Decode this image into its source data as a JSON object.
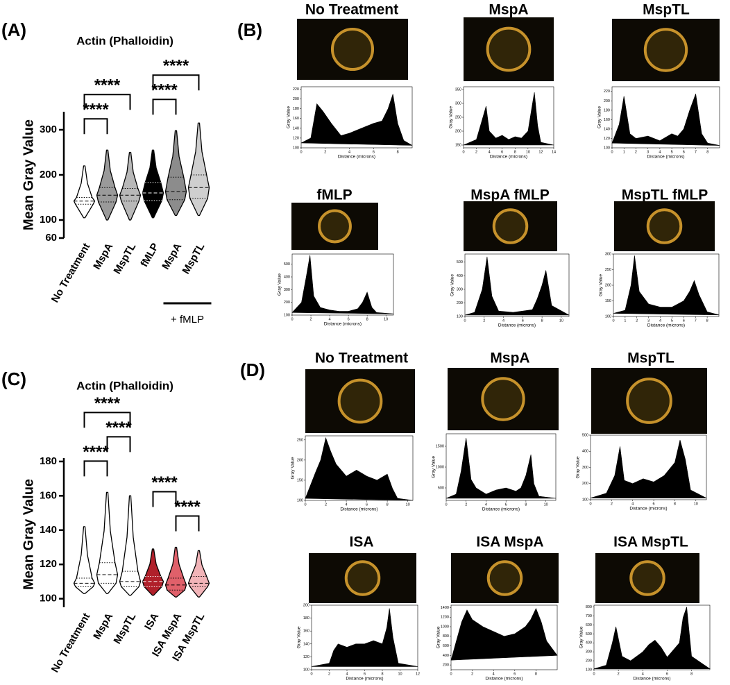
{
  "chart_data": [
    {
      "type": "violin",
      "panel_label": "(A)",
      "title": "Actin (Phalloidin)",
      "y_label": "Mean Gray Value",
      "categories": [
        "No Treatment",
        "MspA",
        "MspTL",
        "fMLP",
        "MspA",
        "MspTL"
      ],
      "colors": [
        "#ffffff",
        "#9a9a9a",
        "#b8b8b8",
        "#000000",
        "#8c8c8c",
        "#cfcfcf"
      ],
      "min": [
        105,
        100,
        100,
        105,
        110,
        110
      ],
      "q1": [
        135,
        140,
        142,
        143,
        145,
        148
      ],
      "median": [
        142,
        155,
        155,
        160,
        163,
        172
      ],
      "q3": [
        150,
        172,
        170,
        183,
        195,
        200
      ],
      "max": [
        220,
        255,
        250,
        255,
        298,
        315
      ],
      "ylim": [
        60,
        340
      ],
      "yticks": [
        60,
        100,
        200,
        300
      ],
      "comparisons": [
        {
          "from": 0,
          "to": 1,
          "label": "****"
        },
        {
          "from": 0,
          "to": 2,
          "label": "****"
        },
        {
          "from": 3,
          "to": 4,
          "label": "****"
        },
        {
          "from": 3,
          "to": 5,
          "label": "****"
        }
      ],
      "group_labels": [
        {
          "label": "+ fMLP",
          "from": 4,
          "to": 5
        }
      ]
    },
    {
      "type": "area",
      "panel_label": "(B)",
      "title": "No Treatment",
      "x_label": "Distance (microns)",
      "y_label": "Gray Value",
      "color": "#000000",
      "x": [
        0,
        0.8,
        1.3,
        1.8,
        2.5,
        3.3,
        4,
        5,
        6,
        6.7,
        7.2,
        7.6,
        8,
        8.5,
        9.2
      ],
      "values": [
        110,
        120,
        190,
        175,
        150,
        125,
        130,
        140,
        150,
        155,
        180,
        210,
        150,
        115,
        105
      ],
      "xlim": [
        0,
        9.2
      ],
      "xticks": [
        0,
        2,
        4,
        6,
        8
      ],
      "ylim": [
        100,
        225
      ],
      "yticks": [
        100,
        120,
        140,
        160,
        180,
        200,
        220
      ]
    },
    {
      "type": "area",
      "title": "MspA",
      "x_label": "Distance (microns)",
      "y_label": "Gray Value",
      "color": "#000000",
      "x": [
        0,
        2,
        3,
        3.5,
        4,
        5,
        6,
        7,
        8,
        9,
        10,
        10.7,
        11,
        11.5,
        12,
        14
      ],
      "values": [
        150,
        170,
        250,
        290,
        200,
        175,
        185,
        170,
        180,
        175,
        200,
        300,
        340,
        220,
        160,
        150
      ],
      "xlim": [
        0,
        14
      ],
      "xticks": [
        0,
        2,
        4,
        6,
        8,
        10,
        12,
        14
      ],
      "ylim": [
        140,
        360
      ],
      "yticks": [
        150,
        200,
        250,
        300,
        350
      ]
    },
    {
      "type": "area",
      "title": "MspTL",
      "x_label": "Distance (microns)",
      "y_label": "Gray Value",
      "color": "#000000",
      "x": [
        0,
        0.6,
        1,
        1.5,
        2,
        3,
        4,
        5,
        5.5,
        6,
        6.5,
        7,
        7.5,
        8,
        9
      ],
      "values": [
        110,
        150,
        210,
        130,
        120,
        125,
        115,
        130,
        125,
        140,
        180,
        215,
        130,
        110,
        105
      ],
      "xlim": [
        0,
        9
      ],
      "xticks": [
        0,
        1,
        2,
        3,
        4,
        5,
        6,
        7,
        8
      ],
      "ylim": [
        100,
        230
      ],
      "yticks": [
        100,
        120,
        140,
        160,
        180,
        200,
        220
      ]
    },
    {
      "type": "area",
      "title": "fMLP",
      "x_label": "Distance (microns)",
      "y_label": "Gray Value",
      "color": "#000000",
      "x": [
        0,
        1,
        1.5,
        1.9,
        2.3,
        3,
        4,
        5,
        6,
        7,
        7.5,
        8,
        8.5,
        9,
        10.8
      ],
      "values": [
        120,
        200,
        400,
        570,
        250,
        160,
        140,
        130,
        130,
        150,
        200,
        280,
        160,
        120,
        110
      ],
      "xlim": [
        0,
        10.8
      ],
      "xticks": [
        0,
        2,
        4,
        6,
        8,
        10
      ],
      "ylim": [
        100,
        580
      ],
      "yticks": [
        100,
        200,
        300,
        400,
        500
      ]
    },
    {
      "type": "area",
      "title": "MspA fMLP",
      "x_label": "Distance (microns)",
      "y_label": "Gray Value",
      "color": "#000000",
      "x": [
        0,
        1,
        1.8,
        2.3,
        2.8,
        3.5,
        5,
        6,
        7,
        7.5,
        8,
        8.4,
        9,
        10.8
      ],
      "values": [
        110,
        130,
        300,
        540,
        250,
        140,
        130,
        140,
        150,
        230,
        330,
        440,
        180,
        110
      ],
      "xlim": [
        0,
        10.8
      ],
      "xticks": [
        0,
        2,
        4,
        6,
        8,
        10
      ],
      "ylim": [
        100,
        560
      ],
      "yticks": [
        100,
        200,
        300,
        400,
        500
      ]
    },
    {
      "type": "area",
      "title": "MspTL fMLP",
      "x_label": "Distance (microns)",
      "y_label": "Gray Value",
      "color": "#000000",
      "x": [
        0,
        1,
        1.5,
        1.8,
        2.2,
        3,
        4,
        5,
        6,
        6.5,
        6.9,
        7.3,
        8,
        9
      ],
      "values": [
        110,
        120,
        200,
        295,
        180,
        140,
        130,
        130,
        150,
        180,
        215,
        170,
        115,
        105
      ],
      "xlim": [
        0,
        9
      ],
      "xticks": [
        0,
        1,
        2,
        3,
        4,
        5,
        6,
        7,
        8
      ],
      "ylim": [
        100,
        300
      ],
      "yticks": [
        100,
        150,
        200,
        250,
        300
      ]
    },
    {
      "type": "violin",
      "panel_label": "(C)",
      "title": "Actin (Phalloidin)",
      "y_label": "Mean Gray Value",
      "categories": [
        "No Treatment",
        "MspA",
        "MspTL",
        "ISA",
        "ISA MspA",
        "ISA MspTL"
      ],
      "colors": [
        "#ffffff",
        "#ffffff",
        "#ffffff",
        "#b0202a",
        "#e0606a",
        "#f2b4b8"
      ],
      "min": [
        103,
        103,
        102,
        102,
        101,
        101
      ],
      "q1": [
        107,
        109,
        107,
        107,
        105,
        107
      ],
      "median": [
        109,
        114,
        110,
        110,
        108,
        109
      ],
      "q3": [
        112,
        121,
        116,
        113,
        112,
        113
      ],
      "max": [
        142,
        162,
        160,
        129,
        130,
        128
      ],
      "ylim": [
        95,
        182
      ],
      "yticks": [
        100,
        120,
        140,
        160,
        180
      ],
      "comparisons": [
        {
          "from": 0,
          "to": 1,
          "label": "****"
        },
        {
          "from": 1,
          "to": 2,
          "label": "****"
        },
        {
          "from": 0,
          "to": 2,
          "label": "****"
        },
        {
          "from": 4,
          "to": 5,
          "label": "****"
        },
        {
          "from": 3,
          "to": 4,
          "label": "****"
        }
      ]
    },
    {
      "type": "area",
      "panel_label": "(D)",
      "title": "No Treatment",
      "x_label": "Distance (microns)",
      "y_label": "Gray Value",
      "color": "#000000",
      "x": [
        0,
        0.7,
        1,
        1.5,
        2,
        2.5,
        3,
        4,
        5,
        6,
        7,
        8,
        8.5,
        9,
        10.5
      ],
      "values": [
        105,
        150,
        170,
        200,
        255,
        220,
        190,
        160,
        175,
        160,
        150,
        165,
        130,
        105,
        100
      ],
      "xlim": [
        0,
        10.5
      ],
      "xticks": [
        0,
        2,
        4,
        6,
        8,
        10
      ],
      "ylim": [
        100,
        260
      ],
      "yticks": [
        100,
        150,
        200,
        250
      ]
    },
    {
      "type": "area",
      "title": "MspA",
      "x_label": "Distance (microns)",
      "y_label": "Gray Value",
      "color": "#000000",
      "x": [
        0,
        1,
        1.5,
        2,
        2.5,
        3,
        4,
        5,
        6,
        7,
        7.5,
        8,
        8.5,
        8.8,
        9.3,
        11
      ],
      "values": [
        250,
        350,
        900,
        1700,
        700,
        500,
        350,
        450,
        500,
        420,
        500,
        800,
        1300,
        600,
        300,
        250
      ],
      "xlim": [
        0,
        11
      ],
      "xticks": [
        0,
        2,
        4,
        6,
        8,
        10
      ],
      "ylim": [
        200,
        1800
      ],
      "yticks": [
        500,
        1000,
        1500
      ]
    },
    {
      "type": "area",
      "title": "MspTL",
      "x_label": "Distance (microns)",
      "y_label": "Gray Value",
      "color": "#000000",
      "x": [
        0,
        1.5,
        2.3,
        2.8,
        3.2,
        4,
        5,
        6,
        7,
        8,
        8.5,
        9,
        9.5,
        11
      ],
      "values": [
        110,
        140,
        250,
        430,
        220,
        200,
        230,
        210,
        250,
        330,
        470,
        350,
        160,
        110
      ],
      "xlim": [
        0,
        11
      ],
      "xticks": [
        0,
        2,
        4,
        6,
        8,
        10
      ],
      "ylim": [
        100,
        500
      ],
      "yticks": [
        100,
        200,
        300,
        400,
        500
      ]
    },
    {
      "type": "area",
      "title": "ISA",
      "x_label": "Distance (microns)",
      "y_label": "Gray Value",
      "color": "#000000",
      "x": [
        0,
        2,
        2.5,
        3,
        4,
        5,
        6,
        7,
        8,
        8.5,
        8.8,
        9.2,
        9.8,
        12
      ],
      "values": [
        105,
        110,
        130,
        140,
        135,
        140,
        140,
        145,
        140,
        165,
        195,
        150,
        110,
        105
      ],
      "xlim": [
        0,
        12
      ],
      "xticks": [
        0,
        2,
        4,
        6,
        8,
        10,
        12
      ],
      "ylim": [
        100,
        200
      ],
      "yticks": [
        100,
        120,
        140,
        160,
        180,
        200
      ]
    },
    {
      "type": "area",
      "title": "ISA MspA",
      "x_label": "Distance (microns)",
      "y_label": "Gray Value",
      "color": "#000000",
      "x": [
        0,
        0.5,
        1,
        1.5,
        2,
        3,
        4,
        5,
        6,
        7,
        7.5,
        8,
        8.5,
        9,
        10
      ],
      "values": [
        300,
        700,
        1100,
        1350,
        1150,
        1000,
        900,
        800,
        850,
        1000,
        1150,
        1380,
        1100,
        700,
        400
      ],
      "xlim": [
        0,
        10
      ],
      "xticks": [
        0,
        2,
        4,
        6,
        8
      ],
      "ylim": [
        100,
        1450
      ],
      "yticks": [
        200,
        400,
        600,
        800,
        1000,
        1200,
        1400
      ]
    },
    {
      "type": "area",
      "title": "ISA MspTL",
      "x_label": "Distance (microns)",
      "y_label": "Gray Value",
      "color": "#000000",
      "x": [
        0,
        1,
        1.5,
        1.8,
        2.3,
        3,
        4,
        4.5,
        5,
        5.5,
        6,
        7,
        7.3,
        7.6,
        8,
        9.5
      ],
      "values": [
        110,
        150,
        400,
        580,
        250,
        200,
        300,
        380,
        430,
        350,
        240,
        400,
        680,
        800,
        250,
        110
      ],
      "xlim": [
        0,
        9.5
      ],
      "xticks": [
        0,
        2,
        4,
        6,
        8
      ],
      "ylim": [
        100,
        820
      ],
      "yticks": [
        100,
        200,
        300,
        400,
        500,
        600,
        700,
        800
      ]
    }
  ]
}
